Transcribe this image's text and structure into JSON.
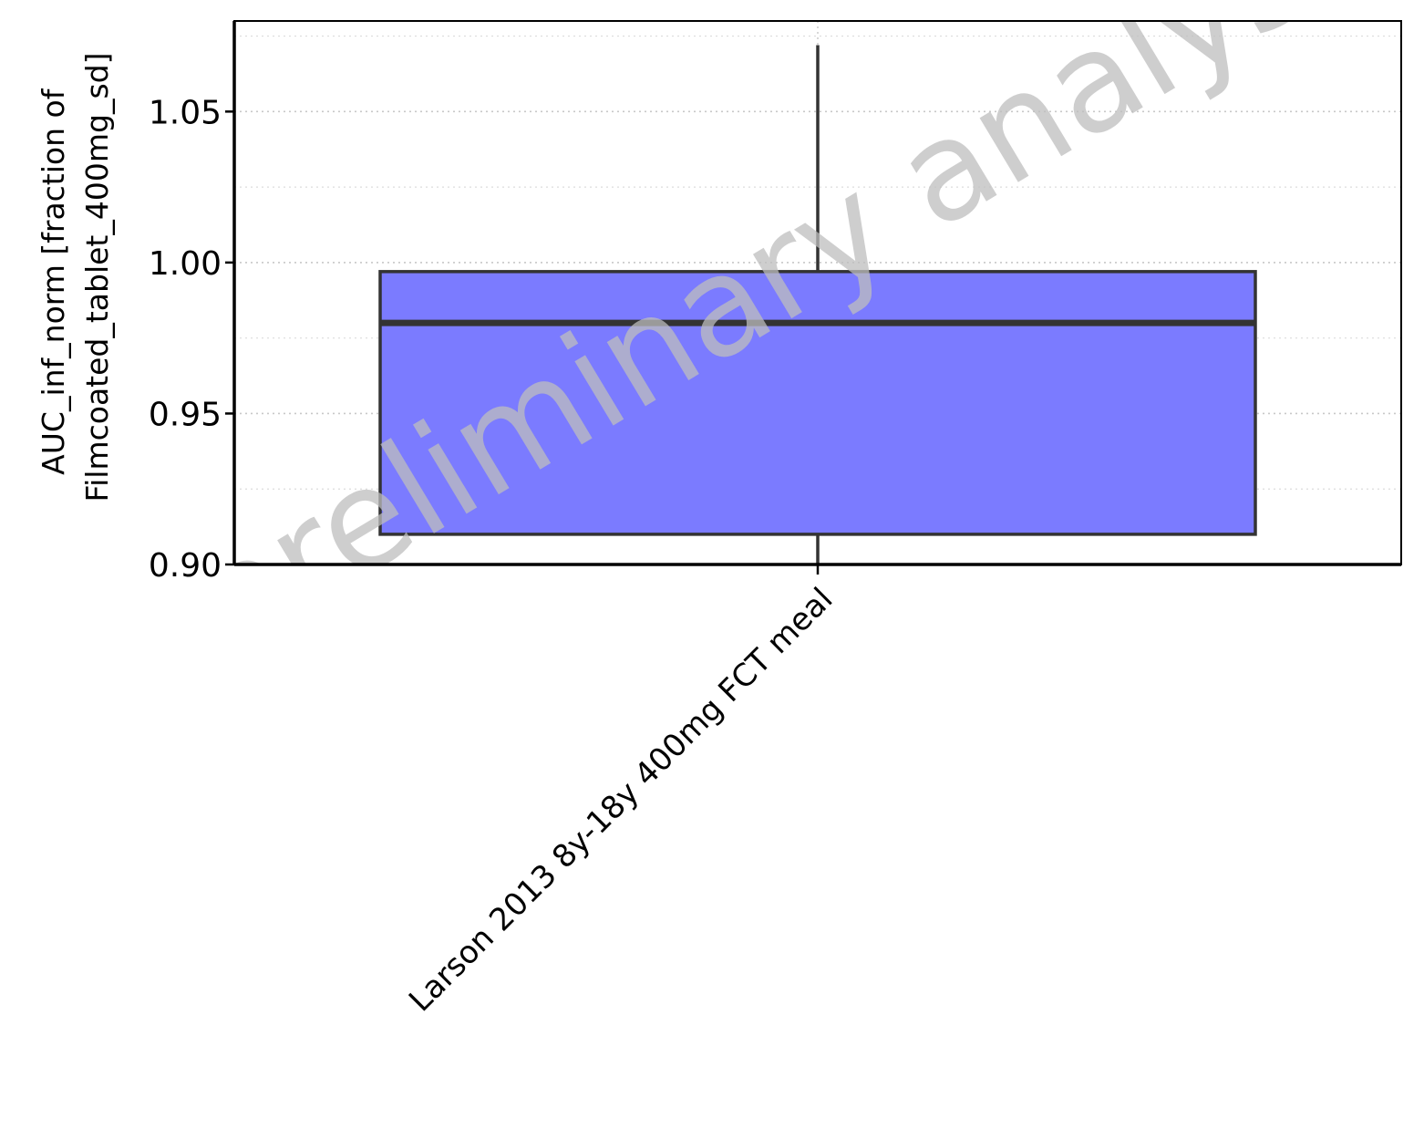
{
  "chart_data": {
    "type": "box",
    "ylabel_lines": [
      "AUC_inf_norm [fraction of",
      "Filmcoated_tablet_400mg_sd]"
    ],
    "xlabel": "",
    "ylim": [
      0.9,
      1.08
    ],
    "yticks": [
      0.9,
      0.95,
      1.0,
      1.05
    ],
    "ytick_labels": [
      "0.90",
      "0.95",
      "1.00",
      "1.05"
    ],
    "grid": true,
    "categories": [
      "Larson 2013 8y-18y 400mg FCT meal"
    ],
    "boxes": [
      {
        "category": "Larson 2013 8y-18y 400mg FCT meal",
        "whisker_low": 0.9,
        "q1": 0.91,
        "median": 0.98,
        "q3": 0.997,
        "whisker_high": 1.072
      }
    ],
    "box_color": "#7b7bff",
    "edge_color": "#333333",
    "watermark": "preliminary analysis"
  }
}
